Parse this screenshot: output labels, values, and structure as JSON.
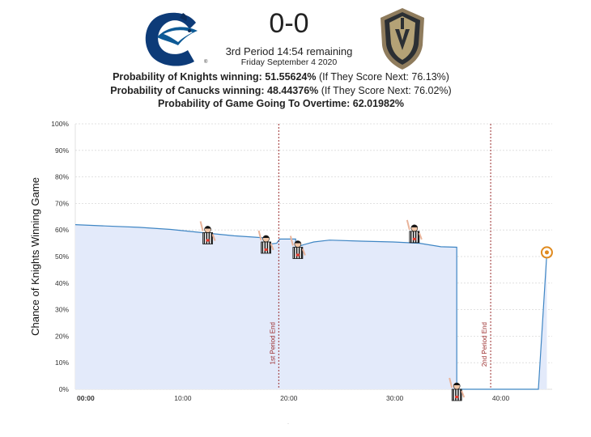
{
  "game": {
    "score": "0-0",
    "period_status": "3rd Period 14:54 remaining",
    "date": "Friday September 4 2020",
    "prob_knights_label": "Probability of Knights winning: 51.55624%",
    "prob_knights_next": " (If They Score Next: 76.13%)",
    "prob_canucks_label": "Probability of Canucks winning: 48.44376%",
    "prob_canucks_next": " (If They Score Next: 76.02%)",
    "prob_overtime_label": "Probability of Game Going To Overtime: 62.01982%"
  },
  "icons": {
    "home_logo": "canucks-logo-icon",
    "away_logo": "golden-knights-logo-icon",
    "penalty": "referee-penalty-icon",
    "current": "current-point-marker-icon"
  },
  "colors": {
    "line": "#3f86c4",
    "fill": "#e3eafa",
    "period_line": "#9b2c2c",
    "current_marker": "#e08a1e",
    "grid": "#d9d9d9"
  },
  "chart_data": {
    "type": "area",
    "title": "",
    "xlabel": "",
    "ylabel": "Chance of Knights Winning Game",
    "xlim": [
      0,
      45
    ],
    "ylim": [
      0,
      100
    ],
    "x_ticks": [
      "00:00",
      "10:00",
      "20:00",
      "30:00",
      "40:00"
    ],
    "y_ticks": [
      "100%",
      "90%",
      "80%",
      "70%",
      "60%",
      "50%",
      "40%",
      "30%",
      "20%",
      "10%",
      "0%"
    ],
    "grid": true,
    "series": [
      {
        "name": "",
        "points": [
          [
            0,
            62
          ],
          [
            3,
            61.5
          ],
          [
            6,
            61
          ],
          [
            9,
            60.2
          ],
          [
            12,
            59
          ],
          [
            15,
            57.8
          ],
          [
            17,
            57.3
          ],
          [
            17.9,
            57
          ],
          [
            17.9,
            54.5
          ],
          [
            19.0,
            55
          ],
          [
            19.3,
            56.6
          ],
          [
            20.8,
            56.6
          ],
          [
            20.8,
            53.5
          ],
          [
            21.6,
            54.5
          ],
          [
            22.5,
            55.5
          ],
          [
            24,
            56.2
          ],
          [
            27,
            55.8
          ],
          [
            30,
            55.5
          ],
          [
            32.5,
            55
          ],
          [
            34.5,
            53.7
          ],
          [
            36.0,
            53.5
          ],
          [
            36.0,
            0
          ],
          [
            40,
            0
          ],
          [
            43.7,
            0
          ],
          [
            44.5,
            51.55
          ]
        ]
      }
    ],
    "period_markers": [
      {
        "x": 19.2,
        "label": "1st Period End"
      },
      {
        "x": 39.2,
        "label": "2nd Period End"
      }
    ],
    "penalties": [
      {
        "x": 12.5,
        "y": 59
      },
      {
        "x": 18.0,
        "y": 55.5
      },
      {
        "x": 21.0,
        "y": 53.5
      },
      {
        "x": 32.0,
        "y": 59.5
      },
      {
        "x": 36.0,
        "y": 0
      }
    ],
    "current_point": {
      "x": 44.5,
      "y": 51.55
    }
  }
}
